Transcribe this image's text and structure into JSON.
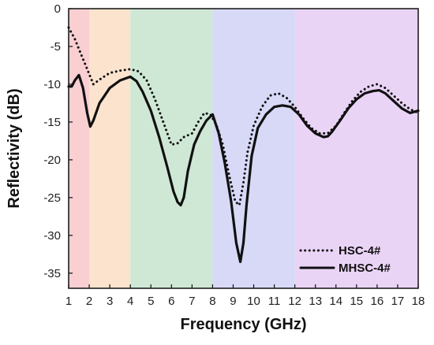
{
  "chart_data": {
    "type": "line",
    "title": "",
    "xlabel": "Frequency (GHz)",
    "ylabel": "Reflectivity (dB)",
    "xlim": [
      1,
      18
    ],
    "ylim": [
      -37,
      0
    ],
    "x_ticks": [
      1,
      2,
      3,
      4,
      5,
      6,
      7,
      8,
      9,
      10,
      11,
      12,
      13,
      14,
      15,
      16,
      17,
      18
    ],
    "y_ticks": [
      0,
      -5,
      -10,
      -15,
      -20,
      -25,
      -30,
      -35
    ],
    "legend_position": "bottom-right",
    "bands": [
      {
        "from": 1,
        "to": 2,
        "color": "#f9cfd2"
      },
      {
        "from": 2,
        "to": 4,
        "color": "#fbe3cd"
      },
      {
        "from": 4,
        "to": 8,
        "color": "#cfe8d6"
      },
      {
        "from": 8,
        "to": 12,
        "color": "#d7d9f6"
      },
      {
        "from": 12,
        "to": 18,
        "color": "#ead4f6"
      }
    ],
    "series": [
      {
        "name": "HSC-4#",
        "style": "dotted",
        "color": "#111111",
        "x": [
          1,
          1.3,
          1.6,
          1.9,
          2.2,
          2.6,
          3,
          3.5,
          4,
          4.4,
          4.8,
          5.2,
          5.6,
          6,
          6.3,
          6.6,
          7,
          7.3,
          7.6,
          7.9,
          8.2,
          8.5,
          8.8,
          9.1,
          9.3,
          9.5,
          9.7,
          10,
          10.4,
          10.8,
          11.2,
          11.6,
          12,
          12.4,
          12.8,
          13.2,
          13.6,
          14,
          14.4,
          14.8,
          15.2,
          15.6,
          16,
          16.4,
          16.8,
          17.2,
          17.6,
          18
        ],
        "y": [
          -2.5,
          -4,
          -6,
          -8,
          -10,
          -9.2,
          -8.5,
          -8.2,
          -8,
          -8.3,
          -9.5,
          -12,
          -15,
          -18,
          -17.8,
          -17,
          -16.5,
          -15,
          -13.8,
          -14,
          -15.5,
          -18,
          -22,
          -25.5,
          -26,
          -23,
          -19,
          -15.5,
          -13,
          -11.5,
          -11.2,
          -11.8,
          -13,
          -14.5,
          -15.8,
          -16.5,
          -16.5,
          -15.5,
          -13.8,
          -12.2,
          -11,
          -10.3,
          -10,
          -10.5,
          -11.5,
          -12.5,
          -13.3,
          -13.8
        ]
      },
      {
        "name": "MHSC-4#",
        "style": "solid",
        "color": "#111111",
        "x": [
          1,
          1.15,
          1.3,
          1.5,
          1.7,
          1.9,
          2.05,
          2.2,
          2.5,
          3,
          3.5,
          4,
          4.3,
          4.6,
          5,
          5.4,
          5.8,
          6.1,
          6.3,
          6.45,
          6.6,
          6.8,
          7.1,
          7.4,
          7.7,
          8,
          8.3,
          8.6,
          8.9,
          9.15,
          9.35,
          9.5,
          9.65,
          9.9,
          10.2,
          10.6,
          11,
          11.4,
          11.8,
          12.2,
          12.6,
          13,
          13.4,
          13.6,
          13.8,
          14.2,
          14.6,
          15,
          15.4,
          15.8,
          16.1,
          16.4,
          16.8,
          17.2,
          17.6,
          18
        ],
        "y": [
          -10.3,
          -10.3,
          -9.5,
          -8.8,
          -10.5,
          -13.8,
          -15.6,
          -14.8,
          -12.5,
          -10.5,
          -9.5,
          -9,
          -9.6,
          -11,
          -13.5,
          -17,
          -21,
          -24.2,
          -25.6,
          -26,
          -25,
          -21.5,
          -18,
          -16.2,
          -14.8,
          -14,
          -16.5,
          -20.5,
          -25.5,
          -31,
          -33.5,
          -31,
          -26,
          -19.5,
          -15.8,
          -14,
          -13,
          -12.8,
          -13,
          -14,
          -15.5,
          -16.5,
          -17,
          -16.9,
          -16.3,
          -14.8,
          -13.2,
          -12,
          -11.2,
          -10.9,
          -10.8,
          -11.2,
          -12.2,
          -13.2,
          -13.8,
          -13.5
        ]
      }
    ]
  }
}
